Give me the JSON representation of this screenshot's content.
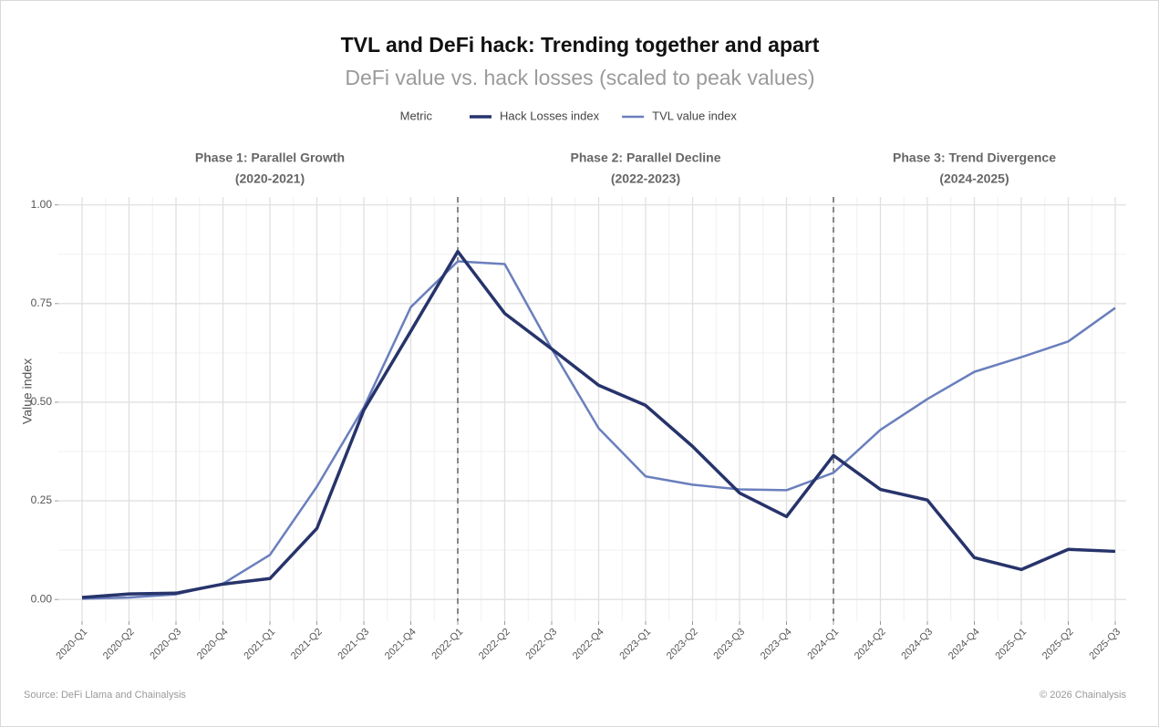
{
  "chart_data": {
    "type": "line",
    "title": "TVL and DeFi hack: Trending together and apart",
    "subtitle": "DeFi value vs. hack losses (scaled to peak values)",
    "legend_title": "Metric",
    "y_label": "Value index",
    "source": "Source: DeFi Llama and Chainalysis",
    "copyright": "© 2026 Chainalysis",
    "categories": [
      "2020-Q1",
      "2020-Q2",
      "2020-Q3",
      "2020-Q4",
      "2021-Q1",
      "2021-Q2",
      "2021-Q3",
      "2021-Q4",
      "2022-Q1",
      "2022-Q2",
      "2022-Q3",
      "2022-Q4",
      "2023-Q1",
      "2023-Q2",
      "2023-Q3",
      "2023-Q4",
      "2024-Q1",
      "2024-Q2",
      "2024-Q3",
      "2024-Q4",
      "2025-Q1",
      "2025-Q2",
      "2025-Q3"
    ],
    "series": [
      {
        "name": "Hack Losses index",
        "color": "#27346b",
        "values": [
          0.005,
          0.014,
          0.016,
          0.039,
          0.053,
          0.18,
          0.48,
          0.68,
          0.882,
          0.725,
          0.635,
          0.543,
          0.492,
          0.388,
          0.27,
          0.21,
          0.365,
          0.279,
          0.252,
          0.106,
          0.076,
          0.127,
          0.122
        ]
      },
      {
        "name": "TVL value index",
        "color": "#6a7fbd",
        "values": [
          0.002,
          0.005,
          0.013,
          0.04,
          0.113,
          0.286,
          0.487,
          0.741,
          0.857,
          0.85,
          0.635,
          0.434,
          0.312,
          0.291,
          0.279,
          0.277,
          0.321,
          0.43,
          0.508,
          0.577,
          0.614,
          0.654,
          0.739
        ]
      }
    ],
    "ylim": [
      -0.055,
      1.02
    ],
    "yticks": [
      {
        "value": 0,
        "label": "0.00"
      },
      {
        "value": 0.25,
        "label": "0.25"
      },
      {
        "value": 0.5,
        "label": "0.50"
      },
      {
        "value": 0.75,
        "label": "0.75"
      },
      {
        "value": 1,
        "label": "1.00"
      }
    ],
    "grid": true,
    "dividers": [
      "2022-Q1",
      "2024-Q1"
    ],
    "phases": [
      {
        "title": "Phase 1: Parallel Growth",
        "years": "(2020-2021)"
      },
      {
        "title": "Phase 2: Parallel Decline",
        "years": "(2022-2023)"
      },
      {
        "title": "Phase 3: Trend Divergence",
        "years": "(2024-2025)"
      }
    ]
  }
}
